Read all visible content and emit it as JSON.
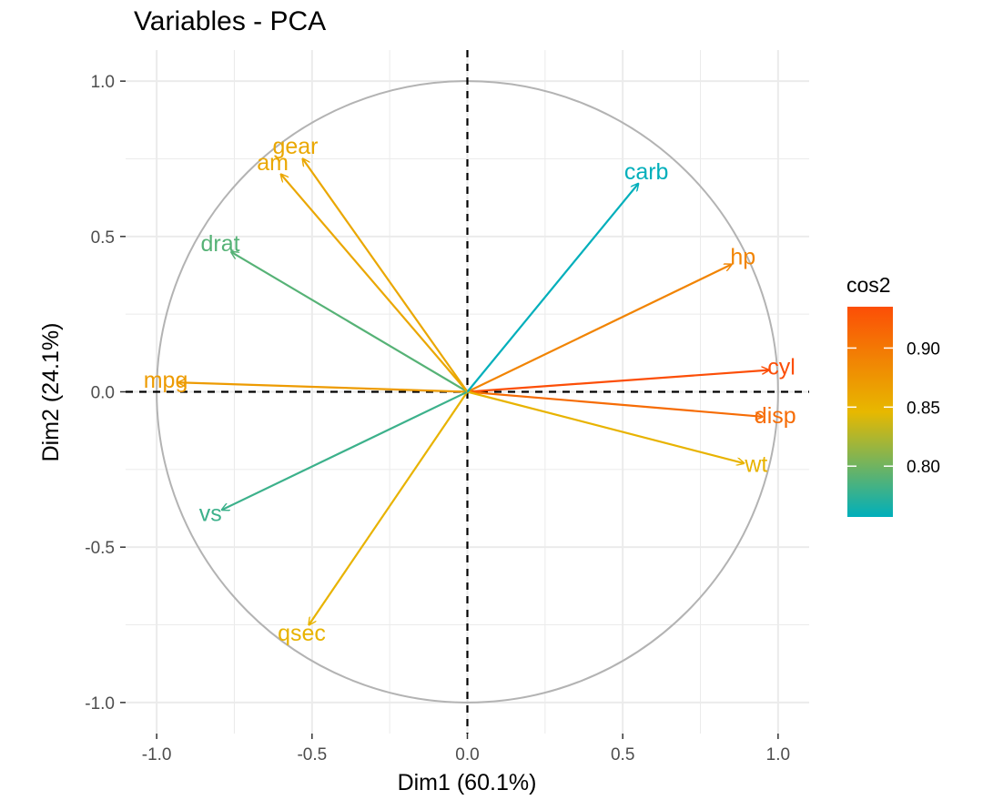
{
  "chart_data": {
    "type": "pca-variables-correlation-circle",
    "title": "Variables - PCA",
    "xlabel": "Dim1 (60.1%)",
    "ylabel": "Dim2 (24.1%)",
    "xlim": [
      -1.1,
      1.1
    ],
    "ylim": [
      -1.1,
      1.1
    ],
    "x_ticks": [
      {
        "value": -1.0,
        "label": "-1.0"
      },
      {
        "value": -0.5,
        "label": "-0.5"
      },
      {
        "value": 0.0,
        "label": "0.0"
      },
      {
        "value": 0.5,
        "label": "0.5"
      },
      {
        "value": 1.0,
        "label": "1.0"
      }
    ],
    "y_ticks": [
      {
        "value": 1.0,
        "label": "1.0"
      },
      {
        "value": 0.5,
        "label": "0.5"
      },
      {
        "value": 0.0,
        "label": "0.0"
      },
      {
        "value": -0.5,
        "label": "-0.5"
      },
      {
        "value": -1.0,
        "label": "-1.0"
      }
    ],
    "grid": true,
    "unit_circle": true,
    "reference_lines": [
      "x=0 dashed",
      "y=0 dashed"
    ],
    "color_variable": "cos2",
    "gradient": {
      "low": "#00AFBB",
      "mid": "#E7B800",
      "high": "#FC4E07",
      "min": 0.757,
      "max": 0.935
    },
    "legend": {
      "title": "cos2",
      "position": "right",
      "ticks": [
        {
          "value": 0.9,
          "label": "0.90"
        },
        {
          "value": 0.85,
          "label": "0.85"
        },
        {
          "value": 0.8,
          "label": "0.80"
        }
      ]
    },
    "variables": [
      {
        "name": "mpg",
        "x": -0.93,
        "y": 0.03,
        "cos2": 0.87
      },
      {
        "name": "cyl",
        "x": 0.97,
        "y": 0.07,
        "cos2": 0.935
      },
      {
        "name": "disp",
        "x": 0.95,
        "y": -0.08,
        "cos2": 0.91
      },
      {
        "name": "hp",
        "x": 0.85,
        "y": 0.41,
        "cos2": 0.89
      },
      {
        "name": "drat",
        "x": -0.76,
        "y": 0.45,
        "cos2": 0.79
      },
      {
        "name": "wt",
        "x": 0.89,
        "y": -0.23,
        "cos2": 0.85
      },
      {
        "name": "qsec",
        "x": -0.51,
        "y": -0.75,
        "cos2": 0.85
      },
      {
        "name": "vs",
        "x": -0.79,
        "y": -0.38,
        "cos2": 0.78
      },
      {
        "name": "am",
        "x": -0.6,
        "y": 0.7,
        "cos2": 0.86
      },
      {
        "name": "gear",
        "x": -0.53,
        "y": 0.75,
        "cos2": 0.86
      },
      {
        "name": "carb",
        "x": 0.55,
        "y": 0.67,
        "cos2": 0.757
      }
    ]
  }
}
